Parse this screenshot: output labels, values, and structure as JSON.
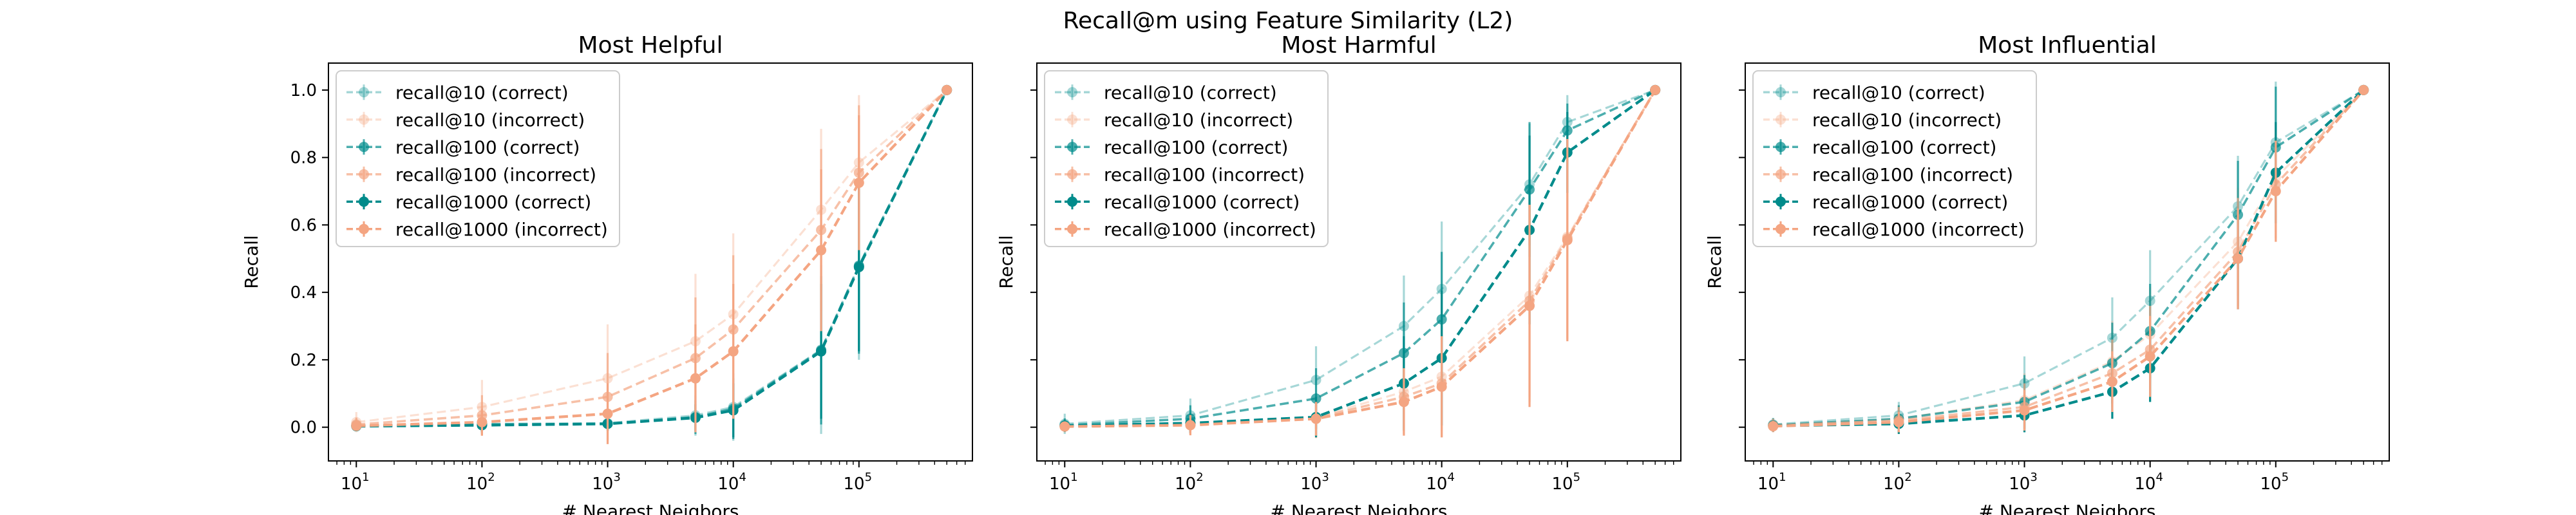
{
  "suptitle": "Recall@m using Feature Similarity (L2)",
  "colors": {
    "correct": "#008B8B",
    "incorrect": "#F4A582"
  },
  "chart_data": [
    {
      "type": "line",
      "title": "Most Helpful",
      "xlabel": "# Nearest Neigbors",
      "ylabel": "Recall",
      "xscale": "log",
      "xlim": [
        6,
        800000
      ],
      "ylim": [
        -0.1,
        1.08
      ],
      "yticks": [
        0.0,
        0.2,
        0.4,
        0.6,
        0.8,
        1.0
      ],
      "ytick_labels": [
        "0.0",
        "0.2",
        "0.4",
        "0.6",
        "0.8",
        "1.0"
      ],
      "xticks": [
        10,
        100,
        1000,
        10000,
        100000
      ],
      "xtick_labels": [
        {
          "base": "10",
          "exp": "1"
        },
        {
          "base": "10",
          "exp": "2"
        },
        {
          "base": "10",
          "exp": "3"
        },
        {
          "base": "10",
          "exp": "4"
        },
        {
          "base": "10",
          "exp": "5"
        }
      ],
      "show_yticklabels": true,
      "legend_position": "upper-left",
      "x": [
        10,
        100,
        1000,
        5000,
        10000,
        50000,
        100000,
        500000
      ],
      "series": [
        {
          "name": "recall@10 (correct)",
          "color": "correct",
          "alpha": 0.35,
          "y": [
            0.005,
            0.01,
            0.012,
            0.035,
            0.06,
            0.23,
            0.48,
            1.0
          ],
          "err": [
            0.01,
            0.03,
            0.02,
            0.06,
            0.1,
            0.25,
            0.28,
            0.0
          ]
        },
        {
          "name": "recall@10 (incorrect)",
          "color": "incorrect",
          "alpha": 0.35,
          "y": [
            0.015,
            0.06,
            0.145,
            0.255,
            0.335,
            0.645,
            0.785,
            1.0
          ],
          "err": [
            0.03,
            0.08,
            0.16,
            0.2,
            0.24,
            0.24,
            0.2,
            0.0
          ]
        },
        {
          "name": "recall@100 (correct)",
          "color": "correct",
          "alpha": 0.7,
          "y": [
            0.004,
            0.008,
            0.01,
            0.03,
            0.055,
            0.228,
            0.478,
            1.0
          ],
          "err": [
            0.01,
            0.025,
            0.02,
            0.05,
            0.09,
            0.22,
            0.26,
            0.0
          ]
        },
        {
          "name": "recall@100 (incorrect)",
          "color": "incorrect",
          "alpha": 0.7,
          "y": [
            0.008,
            0.035,
            0.09,
            0.205,
            0.29,
            0.585,
            0.755,
            1.0
          ],
          "err": [
            0.02,
            0.06,
            0.13,
            0.18,
            0.22,
            0.24,
            0.2,
            0.0
          ]
        },
        {
          "name": "recall@1000 (correct)",
          "color": "correct",
          "alpha": 1.0,
          "y": [
            0.003,
            0.006,
            0.01,
            0.028,
            0.05,
            0.225,
            0.475,
            1.0
          ],
          "err": [
            0.01,
            0.02,
            0.02,
            0.04,
            0.08,
            0.2,
            0.25,
            0.0
          ]
        },
        {
          "name": "recall@1000 (incorrect)",
          "color": "incorrect",
          "alpha": 1.0,
          "y": [
            0.004,
            0.015,
            0.04,
            0.145,
            0.225,
            0.525,
            0.725,
            1.0
          ],
          "err": [
            0.015,
            0.04,
            0.09,
            0.16,
            0.2,
            0.24,
            0.2,
            0.0
          ]
        }
      ]
    },
    {
      "type": "line",
      "title": "Most Harmful",
      "xlabel": "# Nearest Neigbors",
      "ylabel": "Recall",
      "xscale": "log",
      "xlim": [
        6,
        800000
      ],
      "ylim": [
        -0.1,
        1.08
      ],
      "yticks": [
        0.0,
        0.2,
        0.4,
        0.6,
        0.8,
        1.0
      ],
      "ytick_labels": [
        "",
        "",
        "",
        "",
        "",
        ""
      ],
      "xticks": [
        10,
        100,
        1000,
        10000,
        100000
      ],
      "xtick_labels": [
        {
          "base": "10",
          "exp": "1"
        },
        {
          "base": "10",
          "exp": "2"
        },
        {
          "base": "10",
          "exp": "3"
        },
        {
          "base": "10",
          "exp": "4"
        },
        {
          "base": "10",
          "exp": "5"
        }
      ],
      "show_yticklabels": false,
      "legend_position": "upper-left",
      "x": [
        10,
        100,
        1000,
        5000,
        10000,
        50000,
        100000,
        500000
      ],
      "series": [
        {
          "name": "recall@10 (correct)",
          "color": "correct",
          "alpha": 0.35,
          "y": [
            0.01,
            0.035,
            0.14,
            0.3,
            0.41,
            0.72,
            0.905,
            1.0
          ],
          "err": [
            0.03,
            0.05,
            0.1,
            0.15,
            0.2,
            0.18,
            0.08,
            0.0
          ]
        },
        {
          "name": "recall@10 (incorrect)",
          "color": "incorrect",
          "alpha": 0.35,
          "y": [
            0.004,
            0.01,
            0.03,
            0.105,
            0.15,
            0.39,
            0.565,
            1.0
          ],
          "err": [
            0.02,
            0.03,
            0.06,
            0.12,
            0.16,
            0.3,
            0.3,
            0.0
          ]
        },
        {
          "name": "recall@100 (correct)",
          "color": "correct",
          "alpha": 0.7,
          "y": [
            0.006,
            0.025,
            0.085,
            0.22,
            0.32,
            0.705,
            0.88,
            1.0
          ],
          "err": [
            0.02,
            0.04,
            0.09,
            0.15,
            0.2,
            0.2,
            0.08,
            0.0
          ]
        },
        {
          "name": "recall@100 (incorrect)",
          "color": "incorrect",
          "alpha": 0.7,
          "y": [
            0.003,
            0.008,
            0.028,
            0.09,
            0.13,
            0.375,
            0.56,
            1.0
          ],
          "err": [
            0.015,
            0.03,
            0.06,
            0.11,
            0.16,
            0.3,
            0.3,
            0.0
          ]
        },
        {
          "name": "recall@1000 (correct)",
          "color": "correct",
          "alpha": 1.0,
          "y": [
            0.004,
            0.012,
            0.03,
            0.13,
            0.205,
            0.585,
            0.815,
            1.0
          ],
          "err": [
            0.015,
            0.03,
            0.06,
            0.14,
            0.2,
            0.28,
            0.12,
            0.0
          ]
        },
        {
          "name": "recall@1000 (incorrect)",
          "color": "incorrect",
          "alpha": 1.0,
          "y": [
            0.002,
            0.006,
            0.025,
            0.075,
            0.12,
            0.36,
            0.555,
            1.0
          ],
          "err": [
            0.015,
            0.03,
            0.05,
            0.1,
            0.15,
            0.3,
            0.3,
            0.0
          ]
        }
      ]
    },
    {
      "type": "line",
      "title": "Most Influential",
      "xlabel": "# Nearest Neigbors",
      "ylabel": "Recall",
      "xscale": "log",
      "xlim": [
        6,
        800000
      ],
      "ylim": [
        -0.1,
        1.08
      ],
      "yticks": [
        0.0,
        0.2,
        0.4,
        0.6,
        0.8,
        1.0
      ],
      "ytick_labels": [
        "",
        "",
        "",
        "",
        "",
        ""
      ],
      "xticks": [
        10,
        100,
        1000,
        10000,
        100000
      ],
      "xtick_labels": [
        {
          "base": "10",
          "exp": "1"
        },
        {
          "base": "10",
          "exp": "2"
        },
        {
          "base": "10",
          "exp": "3"
        },
        {
          "base": "10",
          "exp": "4"
        },
        {
          "base": "10",
          "exp": "5"
        }
      ],
      "show_yticklabels": false,
      "legend_position": "upper-left",
      "x": [
        10,
        100,
        1000,
        5000,
        10000,
        50000,
        100000,
        500000
      ],
      "series": [
        {
          "name": "recall@10 (correct)",
          "color": "correct",
          "alpha": 0.35,
          "y": [
            0.008,
            0.035,
            0.13,
            0.265,
            0.375,
            0.655,
            0.845,
            1.0
          ],
          "err": [
            0.02,
            0.04,
            0.08,
            0.12,
            0.15,
            0.15,
            0.18,
            0.0
          ]
        },
        {
          "name": "recall@10 (incorrect)",
          "color": "incorrect",
          "alpha": 0.35,
          "y": [
            0.006,
            0.025,
            0.08,
            0.195,
            0.275,
            0.55,
            0.74,
            1.0
          ],
          "err": [
            0.02,
            0.04,
            0.08,
            0.12,
            0.14,
            0.16,
            0.16,
            0.0
          ]
        },
        {
          "name": "recall@100 (correct)",
          "color": "correct",
          "alpha": 0.7,
          "y": [
            0.006,
            0.025,
            0.075,
            0.19,
            0.285,
            0.63,
            0.83,
            1.0
          ],
          "err": [
            0.02,
            0.04,
            0.08,
            0.12,
            0.14,
            0.16,
            0.18,
            0.0
          ]
        },
        {
          "name": "recall@100 (incorrect)",
          "color": "incorrect",
          "alpha": 0.7,
          "y": [
            0.005,
            0.02,
            0.06,
            0.16,
            0.23,
            0.52,
            0.72,
            1.0
          ],
          "err": [
            0.02,
            0.04,
            0.07,
            0.1,
            0.13,
            0.16,
            0.16,
            0.0
          ]
        },
        {
          "name": "recall@1000 (correct)",
          "color": "correct",
          "alpha": 1.0,
          "y": [
            0.004,
            0.01,
            0.035,
            0.105,
            0.175,
            0.5,
            0.755,
            1.0
          ],
          "err": [
            0.015,
            0.03,
            0.05,
            0.08,
            0.1,
            0.15,
            0.15,
            0.0
          ]
        },
        {
          "name": "recall@1000 (incorrect)",
          "color": "incorrect",
          "alpha": 1.0,
          "y": [
            0.003,
            0.015,
            0.05,
            0.135,
            0.21,
            0.5,
            0.7,
            1.0
          ],
          "err": [
            0.015,
            0.03,
            0.06,
            0.09,
            0.12,
            0.15,
            0.15,
            0.0
          ]
        }
      ]
    }
  ]
}
